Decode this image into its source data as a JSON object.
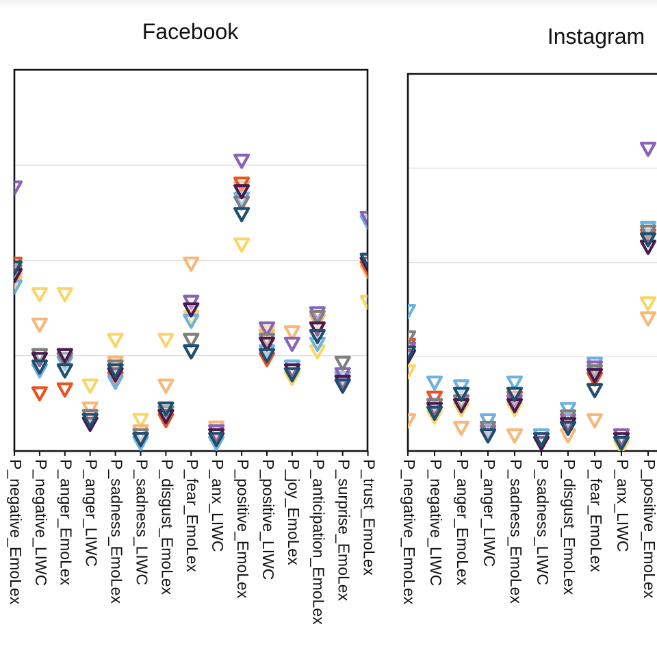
{
  "chart_data": [
    {
      "type": "scatter",
      "title": "Facebook",
      "marker": "triangle-down",
      "grid": "horizontal",
      "ylim": [
        0,
        1
      ],
      "categories": [
        "P_negative_EmoLex",
        "P_negative_LIWC",
        "P_anger_EmoLex",
        "P_anger_LIWC",
        "P_sadness_EmoLex",
        "P_sadness_LIWC",
        "P_disgust_EmoLex",
        "P_fear_EmoLex",
        "P_anx_LIWC",
        "P_positive_EmoLex",
        "P_positive_LIWC",
        "P_joy_EmoLex",
        "P_anticipation_EmoLex",
        "P_surprise_EmoLex",
        "P_trust_EmoLex"
      ],
      "palette": [
        "#8a62b8",
        "#e8531f",
        "#f6b97a",
        "#7f7f7f",
        "#1f4e6e",
        "#f8d66b",
        "#6fb1e0",
        "#4a1a4e"
      ],
      "points": [
        [
          0.69,
          0.49,
          0.45,
          0.47,
          0.48,
          0.44,
          0.43,
          0.46
        ],
        [
          0.25,
          0.15,
          0.33,
          0.25,
          0.22,
          0.41,
          0.21,
          0.24
        ],
        [
          0.24,
          0.16,
          0.23,
          0.24,
          0.21,
          0.41,
          0.23,
          0.25
        ],
        [
          0.07,
          0.08,
          0.11,
          0.09,
          0.08,
          0.17,
          0.09,
          0.07
        ],
        [
          0.21,
          0.19,
          0.23,
          0.22,
          0.21,
          0.29,
          0.18,
          0.2
        ],
        [
          0.03,
          0.03,
          0.05,
          0.04,
          0.03,
          0.08,
          0.02,
          0.03
        ],
        [
          0.1,
          0.08,
          0.17,
          0.1,
          0.11,
          0.29,
          0.09,
          0.09
        ],
        [
          0.39,
          0.29,
          0.49,
          0.29,
          0.26,
          0.35,
          0.34,
          0.37
        ],
        [
          0.05,
          0.03,
          0.06,
          0.04,
          0.03,
          0.05,
          0.02,
          0.04
        ],
        [
          0.76,
          0.7,
          0.69,
          0.65,
          0.62,
          0.54,
          0.66,
          0.68
        ],
        [
          0.32,
          0.24,
          0.3,
          0.29,
          0.25,
          0.31,
          0.26,
          0.28
        ],
        [
          0.28,
          0.2,
          0.31,
          0.21,
          0.2,
          0.19,
          0.22,
          0.21
        ],
        [
          0.36,
          0.32,
          0.34,
          0.35,
          0.3,
          0.26,
          0.28,
          0.32
        ],
        [
          0.2,
          0.19,
          0.18,
          0.23,
          0.17,
          0.19,
          0.19,
          0.18
        ],
        [
          0.61,
          0.48,
          0.47,
          0.49,
          0.5,
          0.39,
          0.6,
          0.49
        ]
      ]
    },
    {
      "type": "scatter",
      "title": "Instagram",
      "marker": "triangle-down",
      "grid": "horizontal",
      "ylim": [
        0,
        1
      ],
      "categories": [
        "P_negative_EmoLex",
        "P_negative_LIWC",
        "P_anger_EmoLex",
        "P_anger_LIWC",
        "P_sadness_EmoLex",
        "P_sadness_LIWC",
        "P_disgust_EmoLex",
        "P_fear_EmoLex",
        "P_anx_LIWC",
        "P_positive_EmoLex"
      ],
      "palette": [
        "#8a62b8",
        "#e8531f",
        "#f6b97a",
        "#7f7f7f",
        "#1f4e6e",
        "#f8d66b",
        "#6fb1e0",
        "#4a1a4e"
      ],
      "points": [
        [
          0.27,
          0.28,
          0.08,
          0.3,
          0.26,
          0.21,
          0.37,
          0.25
        ],
        [
          0.12,
          0.14,
          0.1,
          0.12,
          0.1,
          0.09,
          0.18,
          0.11
        ],
        [
          0.15,
          0.13,
          0.06,
          0.13,
          0.15,
          0.11,
          0.17,
          0.12
        ],
        [
          0.05,
          0.05,
          0.06,
          0.06,
          0.04,
          0.05,
          0.08,
          0.04
        ],
        [
          0.13,
          0.14,
          0.04,
          0.15,
          0.15,
          0.11,
          0.18,
          0.12
        ],
        [
          0.03,
          0.03,
          0.04,
          0.03,
          0.03,
          0.02,
          0.04,
          0.02
        ],
        [
          0.08,
          0.07,
          0.04,
          0.09,
          0.06,
          0.06,
          0.11,
          0.07
        ],
        [
          0.22,
          0.19,
          0.08,
          0.21,
          0.16,
          0.21,
          0.23,
          0.2
        ],
        [
          0.04,
          0.04,
          0.02,
          0.03,
          0.02,
          0.01,
          0.03,
          0.03
        ],
        [
          0.8,
          0.57,
          0.35,
          0.58,
          0.56,
          0.39,
          0.59,
          0.54
        ]
      ]
    }
  ]
}
